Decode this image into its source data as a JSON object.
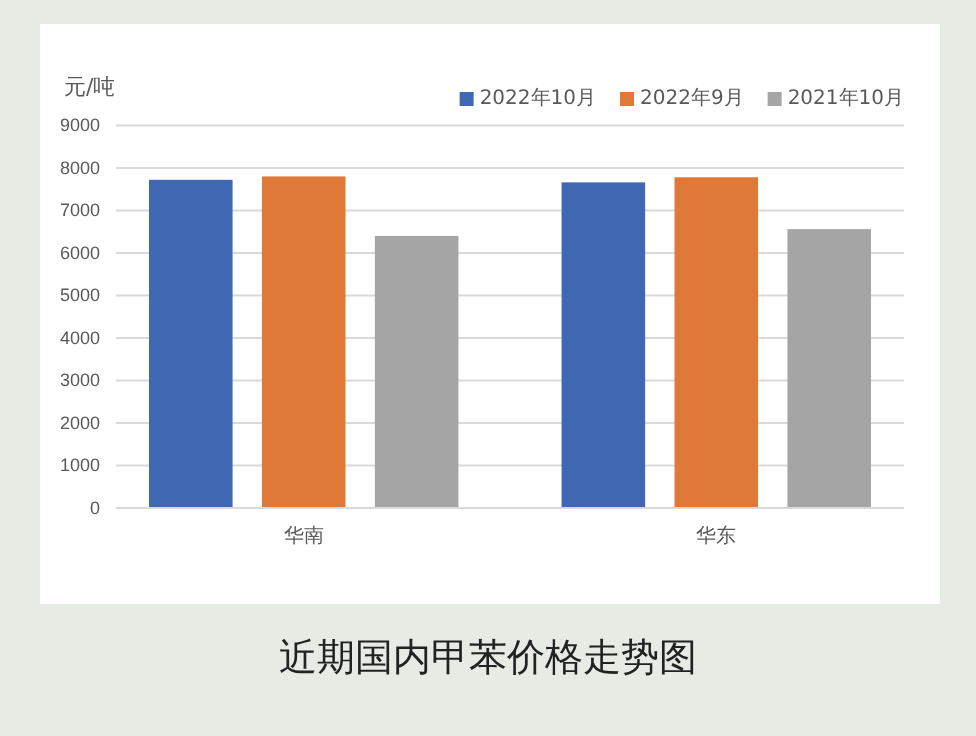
{
  "chart_data": {
    "type": "bar",
    "title": "近期国内甲苯价格走势图",
    "ylabel": "元/吨",
    "categories": [
      "华南",
      "华东"
    ],
    "series": [
      {
        "name": "2022年10月",
        "color": "#4068b2",
        "values": [
          7720,
          7660
        ]
      },
      {
        "name": "2022年9月",
        "color": "#e07838",
        "values": [
          7800,
          7780
        ]
      },
      {
        "name": "2021年10月",
        "color": "#a5a5a5",
        "values": [
          6400,
          6560
        ]
      }
    ],
    "ylim": [
      0,
      9000
    ],
    "yticks": [
      0,
      1000,
      2000,
      3000,
      4000,
      5000,
      6000,
      7000,
      8000,
      9000
    ],
    "grid": "y",
    "legend": "top right"
  }
}
